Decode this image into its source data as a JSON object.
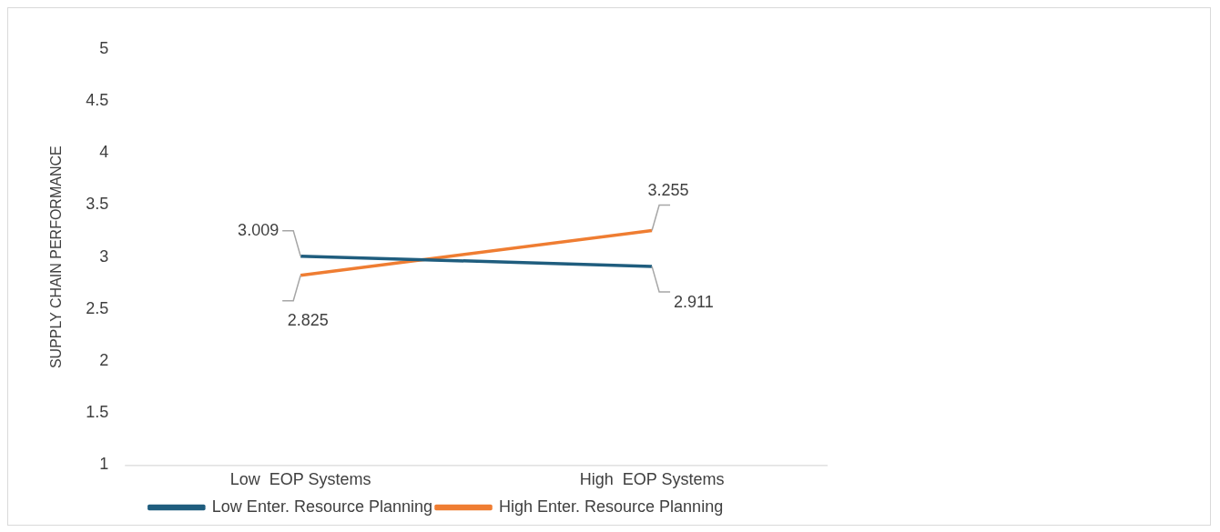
{
  "chart_data": {
    "type": "line",
    "ylabel": "SUPPLY CHAIN PERFORMANCE",
    "categories": [
      "Low  EOP Systems",
      "High  EOP Systems"
    ],
    "series": [
      {
        "name": "Low Enter. Resource Planning",
        "color": "#1f5d7e",
        "values": [
          3.009,
          2.911
        ]
      },
      {
        "name": "High Enter. Resource Planning",
        "color": "#ef7d32",
        "values": [
          2.825,
          3.255
        ]
      }
    ],
    "ylim": [
      1,
      5
    ],
    "yticks": [
      1,
      1.5,
      2,
      2.5,
      3,
      3.5,
      4,
      4.5,
      5
    ],
    "grid": false,
    "legend": "bottom",
    "marker": "none",
    "line_style": "solid",
    "data_labels": true
  }
}
